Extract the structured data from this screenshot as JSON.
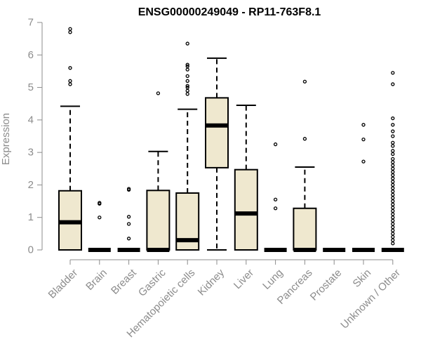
{
  "chart_data": {
    "type": "boxplot",
    "title": "ENSG00000249049 - RP11-763F8.1",
    "xlabel": "",
    "ylabel": "Expression",
    "ylim": [
      0,
      7
    ],
    "yticks": [
      0,
      1,
      2,
      3,
      4,
      5,
      6,
      7
    ],
    "grid": false,
    "box_color": "#efe8cf",
    "axis_color": "#8c8c8c",
    "categories": [
      "Bladder",
      "Brain",
      "Breast",
      "Gastric",
      "Hematopoietic cells",
      "Kidney",
      "Liver",
      "Lung",
      "Pancreas",
      "Prostate",
      "Skin",
      "Unknown / Other"
    ],
    "boxes": [
      {
        "category": "Bladder",
        "min": 0,
        "q1": 0,
        "median": 0.85,
        "q3": 1.82,
        "max": 4.42,
        "outliers": [
          5.1,
          5.2,
          5.6,
          6.7,
          6.8
        ]
      },
      {
        "category": "Brain",
        "min": 0,
        "q1": 0,
        "median": 0,
        "q3": 0,
        "max": 0,
        "outliers": [
          1.0,
          1.42,
          1.45
        ]
      },
      {
        "category": "Breast",
        "min": 0,
        "q1": 0,
        "median": 0,
        "q3": 0,
        "max": 0,
        "outliers": [
          0.35,
          0.8,
          1.02,
          1.85,
          1.88
        ]
      },
      {
        "category": "Gastric",
        "min": 0,
        "q1": 0,
        "median": 0,
        "q3": 1.83,
        "max": 3.03,
        "outliers": [
          4.82
        ]
      },
      {
        "category": "Hematopoietic cells",
        "min": 0,
        "q1": 0,
        "median": 0.3,
        "q3": 1.75,
        "max": 4.33,
        "outliers": [
          4.8,
          4.9,
          5.0,
          5.05,
          5.2,
          5.35,
          5.55,
          5.65,
          5.7,
          6.35
        ]
      },
      {
        "category": "Kidney",
        "min": 0,
        "q1": 2.53,
        "median": 3.83,
        "q3": 4.68,
        "max": 5.9,
        "outliers": []
      },
      {
        "category": "Liver",
        "min": 0,
        "q1": 0,
        "median": 1.12,
        "q3": 2.47,
        "max": 4.45,
        "outliers": []
      },
      {
        "category": "Lung",
        "min": 0,
        "q1": 0,
        "median": 0,
        "q3": 0,
        "max": 0,
        "outliers": [
          1.28,
          1.55,
          3.25
        ]
      },
      {
        "category": "Pancreas",
        "min": 0,
        "q1": 0,
        "median": 0,
        "q3": 1.28,
        "max": 2.55,
        "outliers": [
          3.42,
          5.18
        ]
      },
      {
        "category": "Prostate",
        "min": 0,
        "q1": 0,
        "median": 0,
        "q3": 0,
        "max": 0,
        "outliers": []
      },
      {
        "category": "Skin",
        "min": 0,
        "q1": 0,
        "median": 0,
        "q3": 0,
        "max": 0,
        "outliers": [
          2.72,
          3.4,
          3.85
        ]
      },
      {
        "category": "Unknown / Other",
        "min": 0,
        "q1": 0,
        "median": 0,
        "q3": 0,
        "max": 0,
        "outliers": [
          0.2,
          0.3,
          0.4,
          0.5,
          0.6,
          0.7,
          0.8,
          0.9,
          1.0,
          1.1,
          1.2,
          1.3,
          1.4,
          1.5,
          1.6,
          1.7,
          1.8,
          1.9,
          2.0,
          2.1,
          2.2,
          2.3,
          2.4,
          2.5,
          2.6,
          2.7,
          2.8,
          2.95,
          3.05,
          3.2,
          3.3,
          3.5,
          3.65,
          3.85,
          4.05,
          5.1,
          5.45
        ]
      }
    ]
  }
}
